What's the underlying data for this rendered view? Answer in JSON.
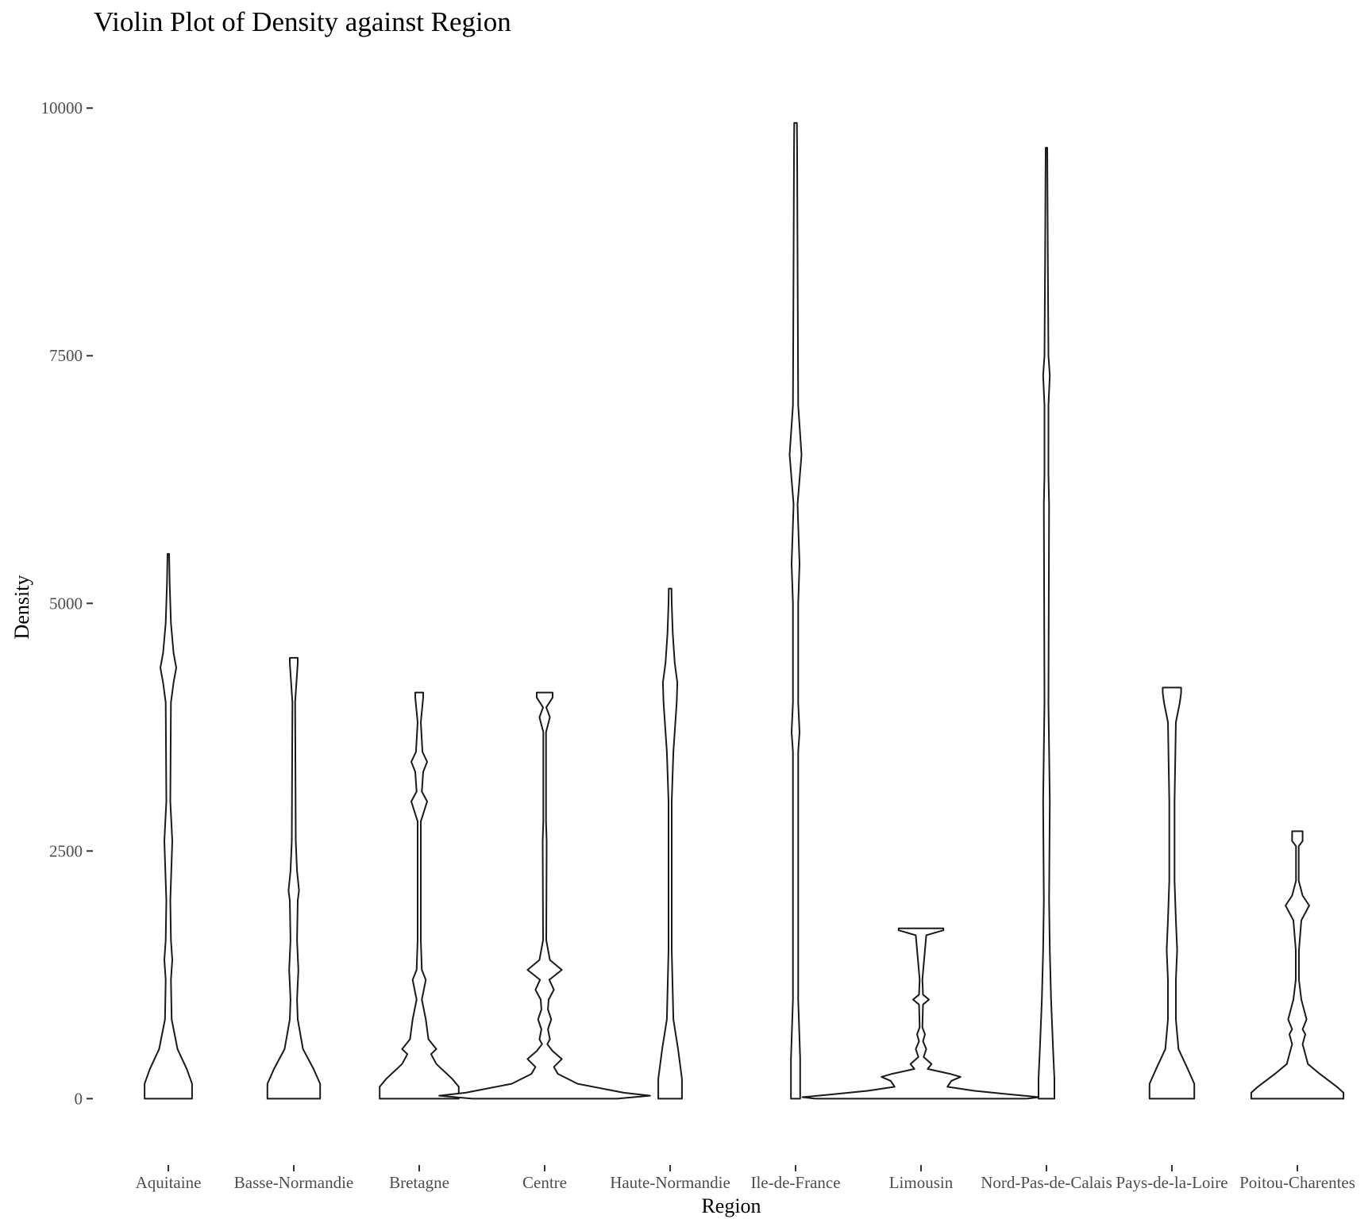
{
  "chart_data": {
    "type": "violin",
    "title": "Violin Plot of Density against Region",
    "xlabel": "Region",
    "ylabel": "Density",
    "ylim": [
      -550,
      10250
    ],
    "yticks": [
      0,
      2500,
      5000,
      7500,
      10000
    ],
    "categories": [
      "Aquitaine",
      "Basse-Normandie",
      "Bretagne",
      "Centre",
      "Haute-Normandie",
      "Ile-de-France",
      "Limousin",
      "Nord-Pas-de-Calais",
      "Pays-de-la-Loire",
      "Poitou-Charentes"
    ],
    "grid": false,
    "legend": "none",
    "series": [
      {
        "category": "Aquitaine",
        "min": 0,
        "max": 5500,
        "profile": [
          [
            0,
            0.18
          ],
          [
            150,
            0.18
          ],
          [
            300,
            0.14
          ],
          [
            500,
            0.07
          ],
          [
            800,
            0.025
          ],
          [
            1200,
            0.02
          ],
          [
            1400,
            0.03
          ],
          [
            1600,
            0.02
          ],
          [
            2000,
            0.015
          ],
          [
            2600,
            0.03
          ],
          [
            3000,
            0.015
          ],
          [
            4000,
            0.02
          ],
          [
            4200,
            0.04
          ],
          [
            4350,
            0.06
          ],
          [
            4500,
            0.04
          ],
          [
            4800,
            0.02
          ],
          [
            5200,
            0.01
          ],
          [
            5500,
            0.006
          ]
        ]
      },
      {
        "category": "Basse-Normandie",
        "min": 0,
        "max": 4450,
        "profile": [
          [
            0,
            0.2
          ],
          [
            150,
            0.2
          ],
          [
            300,
            0.15
          ],
          [
            500,
            0.07
          ],
          [
            800,
            0.03
          ],
          [
            1000,
            0.025
          ],
          [
            1300,
            0.035
          ],
          [
            1600,
            0.025
          ],
          [
            2000,
            0.03
          ],
          [
            2100,
            0.04
          ],
          [
            2300,
            0.025
          ],
          [
            2600,
            0.015
          ],
          [
            3500,
            0.012
          ],
          [
            4000,
            0.01
          ],
          [
            4400,
            0.03
          ],
          [
            4450,
            0.03
          ]
        ]
      },
      {
        "category": "Bretagne",
        "min": 0,
        "max": 4100,
        "profile": [
          [
            0,
            0.3
          ],
          [
            120,
            0.3
          ],
          [
            200,
            0.25
          ],
          [
            350,
            0.13
          ],
          [
            450,
            0.09
          ],
          [
            500,
            0.13
          ],
          [
            600,
            0.07
          ],
          [
            800,
            0.05
          ],
          [
            1000,
            0.02
          ],
          [
            1200,
            0.05
          ],
          [
            1300,
            0.02
          ],
          [
            1600,
            0.012
          ],
          [
            2800,
            0.012
          ],
          [
            3000,
            0.06
          ],
          [
            3100,
            0.02
          ],
          [
            3300,
            0.03
          ],
          [
            3400,
            0.06
          ],
          [
            3500,
            0.025
          ],
          [
            3800,
            0.012
          ],
          [
            4050,
            0.03
          ],
          [
            4100,
            0.03
          ]
        ]
      },
      {
        "category": "Centre",
        "min": 0,
        "max": 4100,
        "profile": [
          [
            0,
            0.55
          ],
          [
            30,
            0.8
          ],
          [
            60,
            0.6
          ],
          [
            150,
            0.25
          ],
          [
            250,
            0.1
          ],
          [
            320,
            0.07
          ],
          [
            400,
            0.13
          ],
          [
            480,
            0.06
          ],
          [
            550,
            0.02
          ],
          [
            600,
            0.04
          ],
          [
            700,
            0.025
          ],
          [
            800,
            0.05
          ],
          [
            900,
            0.025
          ],
          [
            1000,
            0.03
          ],
          [
            1100,
            0.07
          ],
          [
            1200,
            0.035
          ],
          [
            1300,
            0.13
          ],
          [
            1400,
            0.04
          ],
          [
            1600,
            0.012
          ],
          [
            2600,
            0.015
          ],
          [
            2800,
            0.01
          ],
          [
            3700,
            0.01
          ],
          [
            3850,
            0.04
          ],
          [
            3950,
            0.012
          ],
          [
            4050,
            0.06
          ],
          [
            4100,
            0.06
          ]
        ]
      },
      {
        "category": "Haute-Normandie",
        "min": 0,
        "max": 5150,
        "profile": [
          [
            0,
            0.09
          ],
          [
            200,
            0.09
          ],
          [
            500,
            0.06
          ],
          [
            800,
            0.025
          ],
          [
            1500,
            0.012
          ],
          [
            3000,
            0.012
          ],
          [
            3500,
            0.025
          ],
          [
            4000,
            0.05
          ],
          [
            4200,
            0.055
          ],
          [
            4400,
            0.035
          ],
          [
            4700,
            0.02
          ],
          [
            5000,
            0.012
          ],
          [
            5150,
            0.01
          ]
        ]
      },
      {
        "category": "Ile-de-France",
        "min": 0,
        "max": 9850,
        "profile": [
          [
            0,
            0.035
          ],
          [
            400,
            0.035
          ],
          [
            1000,
            0.02
          ],
          [
            2500,
            0.02
          ],
          [
            3500,
            0.02
          ],
          [
            3700,
            0.03
          ],
          [
            4000,
            0.02
          ],
          [
            5000,
            0.02
          ],
          [
            5400,
            0.03
          ],
          [
            5800,
            0.02
          ],
          [
            6000,
            0.015
          ],
          [
            6500,
            0.045
          ],
          [
            7000,
            0.02
          ],
          [
            8500,
            0.015
          ],
          [
            9500,
            0.012
          ],
          [
            9850,
            0.01
          ]
        ]
      },
      {
        "category": "Limousin",
        "min": 0,
        "max": 1720,
        "profile": [
          [
            0,
            0.8
          ],
          [
            15,
            0.9
          ],
          [
            40,
            0.7
          ],
          [
            80,
            0.4
          ],
          [
            120,
            0.2
          ],
          [
            180,
            0.23
          ],
          [
            220,
            0.3
          ],
          [
            250,
            0.22
          ],
          [
            300,
            0.05
          ],
          [
            350,
            0.08
          ],
          [
            420,
            0.02
          ],
          [
            500,
            0.04
          ],
          [
            580,
            0.015
          ],
          [
            650,
            0.03
          ],
          [
            720,
            0.01
          ],
          [
            950,
            0.015
          ],
          [
            1000,
            0.06
          ],
          [
            1050,
            0.015
          ],
          [
            1200,
            0.01
          ],
          [
            1650,
            0.04
          ],
          [
            1700,
            0.17
          ],
          [
            1720,
            0.17
          ]
        ]
      },
      {
        "category": "Nord-Pas-de-Calais",
        "min": 0,
        "max": 9600,
        "profile": [
          [
            0,
            0.06
          ],
          [
            200,
            0.06
          ],
          [
            500,
            0.05
          ],
          [
            1000,
            0.035
          ],
          [
            1500,
            0.025
          ],
          [
            2000,
            0.02
          ],
          [
            3000,
            0.025
          ],
          [
            4000,
            0.015
          ],
          [
            6000,
            0.02
          ],
          [
            6300,
            0.015
          ],
          [
            7000,
            0.015
          ],
          [
            7300,
            0.025
          ],
          [
            7500,
            0.015
          ],
          [
            8500,
            0.01
          ],
          [
            9600,
            0.006
          ]
        ]
      },
      {
        "category": "Pays-de-la-Loire",
        "min": 0,
        "max": 4150,
        "profile": [
          [
            0,
            0.17
          ],
          [
            150,
            0.17
          ],
          [
            300,
            0.12
          ],
          [
            500,
            0.05
          ],
          [
            800,
            0.03
          ],
          [
            1200,
            0.03
          ],
          [
            1500,
            0.04
          ],
          [
            1800,
            0.03
          ],
          [
            2200,
            0.02
          ],
          [
            3000,
            0.02
          ],
          [
            3800,
            0.03
          ],
          [
            4000,
            0.06
          ],
          [
            4100,
            0.07
          ],
          [
            4150,
            0.07
          ]
        ]
      },
      {
        "category": "Poitou-Charentes",
        "min": 0,
        "max": 2700,
        "profile": [
          [
            0,
            0.35
          ],
          [
            60,
            0.35
          ],
          [
            120,
            0.3
          ],
          [
            250,
            0.17
          ],
          [
            350,
            0.08
          ],
          [
            450,
            0.06
          ],
          [
            550,
            0.04
          ],
          [
            650,
            0.06
          ],
          [
            700,
            0.04
          ],
          [
            800,
            0.07
          ],
          [
            900,
            0.05
          ],
          [
            1000,
            0.03
          ],
          [
            1200,
            0.012
          ],
          [
            1500,
            0.012
          ],
          [
            1800,
            0.03
          ],
          [
            1950,
            0.09
          ],
          [
            2050,
            0.04
          ],
          [
            2200,
            0.01
          ],
          [
            2550,
            0.01
          ],
          [
            2600,
            0.04
          ],
          [
            2650,
            0.04
          ],
          [
            2700,
            0.04
          ]
        ]
      }
    ]
  }
}
